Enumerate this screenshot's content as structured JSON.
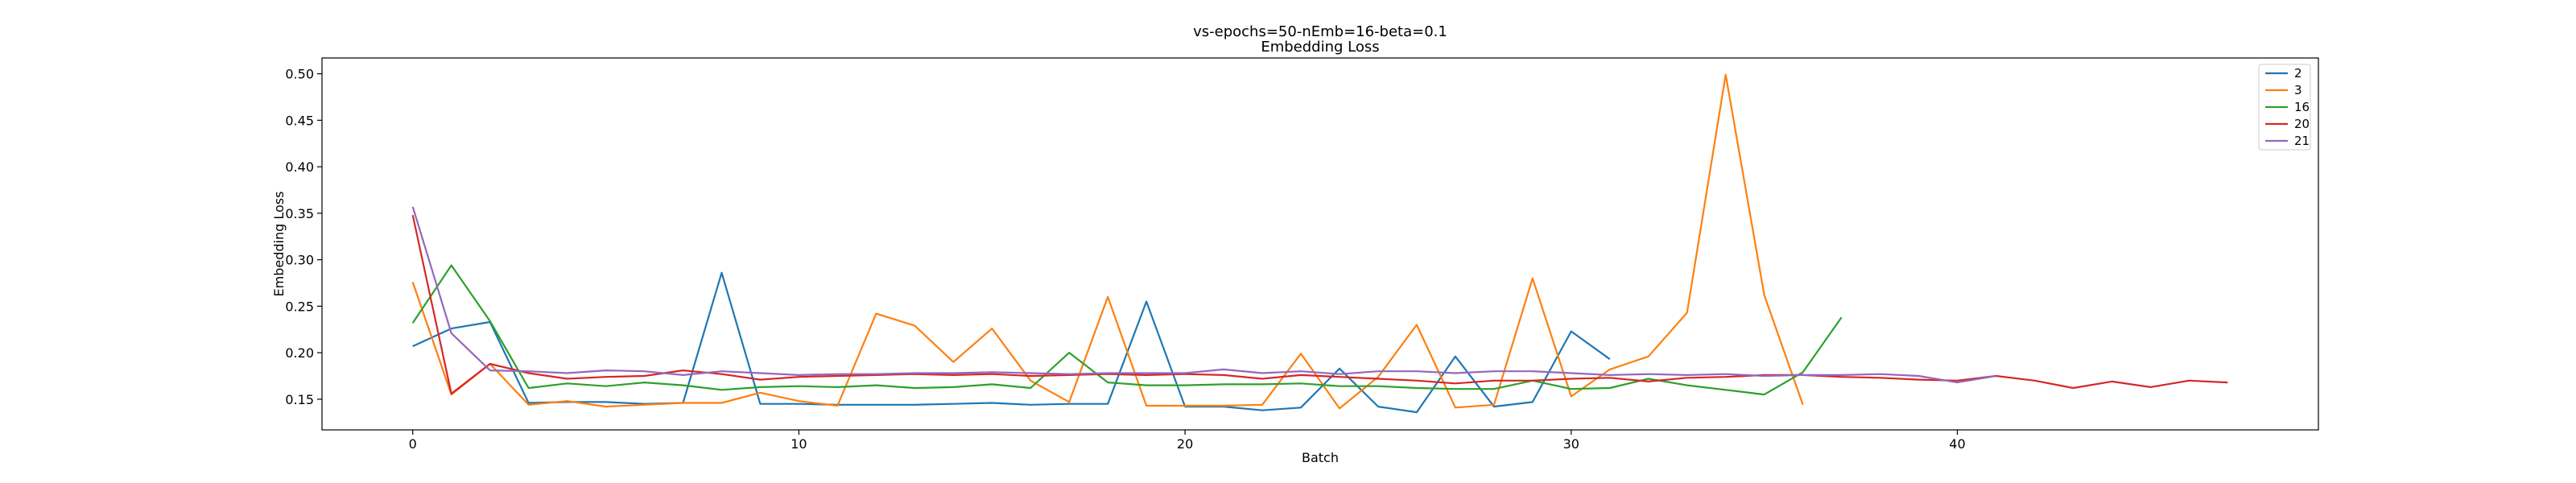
{
  "chart_data": {
    "type": "line",
    "title": "vs-epochs=50-nEmb=16-beta=0.1",
    "subtitle": "Embedding Loss",
    "xlabel": "Batch",
    "ylabel": "Embedding Loss",
    "xlim": [
      -2.35,
      49.35
    ],
    "ylim": [
      0.117,
      0.517
    ],
    "xticks": [
      0,
      10,
      20,
      30,
      40
    ],
    "yticks": [
      0.15,
      0.2,
      0.25,
      0.3,
      0.35,
      0.4,
      0.45,
      0.5
    ],
    "ytick_labels": [
      "0.15",
      "0.20",
      "0.25",
      "0.30",
      "0.35",
      "0.40",
      "0.45",
      "0.50"
    ],
    "grid": false,
    "legend_placement": "top-right",
    "series": [
      {
        "name": "2",
        "color": "#1f77b4",
        "values": [
          0.207,
          0.226,
          0.233,
          0.146,
          0.147,
          0.147,
          0.145,
          0.146,
          0.286,
          0.145,
          0.145,
          0.144,
          0.144,
          0.144,
          0.145,
          0.146,
          0.144,
          0.145,
          0.145,
          0.255,
          0.142,
          0.142,
          0.138,
          0.141,
          0.183,
          0.142,
          0.136,
          0.196,
          0.142,
          0.147,
          0.223,
          0.193
        ]
      },
      {
        "name": "3",
        "color": "#ff7f0e",
        "values": [
          0.276,
          0.155,
          0.188,
          0.144,
          0.148,
          0.142,
          0.144,
          0.146,
          0.146,
          0.157,
          0.148,
          0.143,
          0.242,
          0.229,
          0.19,
          0.226,
          0.17,
          0.147,
          0.26,
          0.143,
          0.143,
          0.143,
          0.144,
          0.199,
          0.14,
          0.174,
          0.23,
          0.141,
          0.144,
          0.28,
          0.153,
          0.182,
          0.196,
          0.243,
          0.499,
          0.262,
          0.144
        ]
      },
      {
        "name": "16",
        "color": "#2ca02c",
        "values": [
          0.232,
          0.294,
          0.234,
          0.162,
          0.167,
          0.164,
          0.168,
          0.165,
          0.16,
          0.163,
          0.164,
          0.163,
          0.165,
          0.162,
          0.163,
          0.166,
          0.162,
          0.2,
          0.168,
          0.165,
          0.165,
          0.166,
          0.166,
          0.167,
          0.164,
          0.164,
          0.162,
          0.161,
          0.161,
          0.17,
          0.161,
          0.162,
          0.172,
          0.165,
          0.16,
          0.155,
          0.179,
          0.238
        ]
      },
      {
        "name": "20",
        "color": "#d62728",
        "values": [
          0.348,
          0.156,
          0.188,
          0.178,
          0.172,
          0.174,
          0.175,
          0.181,
          0.177,
          0.171,
          0.174,
          0.175,
          0.176,
          0.177,
          0.176,
          0.177,
          0.175,
          0.176,
          0.177,
          0.176,
          0.177,
          0.176,
          0.172,
          0.176,
          0.174,
          0.172,
          0.17,
          0.167,
          0.17,
          0.17,
          0.172,
          0.173,
          0.169,
          0.173,
          0.174,
          0.176,
          0.176,
          0.174,
          0.173,
          0.171,
          0.17,
          0.175,
          0.17,
          0.162,
          0.169,
          0.163,
          0.17,
          0.168
        ]
      },
      {
        "name": "21",
        "color": "#9467bd",
        "values": [
          0.357,
          0.221,
          0.181,
          0.18,
          0.178,
          0.181,
          0.18,
          0.176,
          0.18,
          0.178,
          0.176,
          0.177,
          0.177,
          0.178,
          0.178,
          0.179,
          0.178,
          0.177,
          0.178,
          0.178,
          0.178,
          0.182,
          0.178,
          0.18,
          0.177,
          0.18,
          0.18,
          0.178,
          0.18,
          0.18,
          0.178,
          0.176,
          0.177,
          0.176,
          0.177,
          0.175,
          0.176,
          0.176,
          0.177,
          0.175,
          0.168,
          0.175
        ]
      }
    ]
  }
}
